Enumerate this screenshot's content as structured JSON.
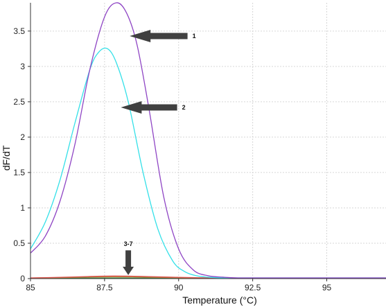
{
  "chart_data": {
    "type": "line",
    "title": "",
    "xlabel": "Temperature (°C)",
    "ylabel": "dF/dT",
    "xlim": [
      85,
      97
    ],
    "ylim": [
      0,
      3.9
    ],
    "xticks": [
      85,
      87.5,
      90,
      92.5,
      95
    ],
    "xtick_labels": [
      "85",
      "87.5",
      "90",
      "92.5",
      "95"
    ],
    "yticks": [
      0,
      0.5,
      1,
      1.5,
      2,
      2.5,
      3,
      3.5
    ],
    "ytick_labels": [
      "0",
      "0.5",
      "1",
      "1.5",
      "2",
      "2.5",
      "3",
      "3.5"
    ],
    "grid": true,
    "legend": "none",
    "series": [
      {
        "color": "#8e44c4",
        "x": [
          85,
          85.5,
          86,
          86.5,
          87,
          87.5,
          87.9,
          88.25,
          88.6,
          89,
          89.5,
          90,
          90.5,
          91,
          91.5,
          92,
          93,
          94,
          95,
          96,
          97
        ],
        "y": [
          0.36,
          0.6,
          1.1,
          1.9,
          2.95,
          3.7,
          3.9,
          3.75,
          3.3,
          2.4,
          1.15,
          0.42,
          0.12,
          0.04,
          0.02,
          0.01,
          0.01,
          0.01,
          0.01,
          0.01,
          0.01
        ]
      },
      {
        "color": "#33e0e8",
        "x": [
          85,
          85.5,
          86,
          86.5,
          87,
          87.3,
          87.6,
          87.9,
          88.3,
          88.8,
          89.3,
          89.8,
          90.2,
          90.6,
          91,
          91.5,
          92,
          93,
          94,
          95,
          96,
          97
        ],
        "y": [
          0.42,
          0.8,
          1.4,
          2.2,
          2.95,
          3.2,
          3.25,
          3.05,
          2.5,
          1.5,
          0.7,
          0.25,
          0.1,
          0.04,
          0.02,
          0.01,
          0.01,
          0.01,
          0.01,
          0.01,
          0.01,
          0.01
        ]
      },
      {
        "color": "#d9534f",
        "x": [
          85,
          86,
          87,
          87.8,
          88.5,
          89,
          90,
          91,
          92,
          94,
          97
        ],
        "y": [
          0.01,
          0.018,
          0.03,
          0.036,
          0.033,
          0.028,
          0.018,
          0.01,
          0.006,
          0.005,
          0.005
        ]
      },
      {
        "color": "#c47a3a",
        "x": [
          85,
          86,
          87,
          87.8,
          88.5,
          89,
          90,
          91,
          92,
          94,
          97
        ],
        "y": [
          0.008,
          0.014,
          0.022,
          0.026,
          0.024,
          0.02,
          0.013,
          0.008,
          0.005,
          0.004,
          0.004
        ]
      },
      {
        "color": "#3c8a3c",
        "x": [
          85,
          86,
          87,
          88,
          89,
          90,
          91,
          92,
          94,
          97
        ],
        "y": [
          0.004,
          0.006,
          0.008,
          0.009,
          0.008,
          0.006,
          0.005,
          0.004,
          0.004,
          0.004
        ]
      },
      {
        "color": "#4a6fd1",
        "x": [
          85,
          86,
          87,
          88,
          89,
          90,
          91,
          92,
          94,
          97
        ],
        "y": [
          0.003,
          0.005,
          0.006,
          0.007,
          0.006,
          0.005,
          0.004,
          0.003,
          0.003,
          0.003
        ]
      },
      {
        "color": "#b0b0b0",
        "x": [
          85,
          86,
          87,
          88,
          89,
          90,
          91,
          92,
          94,
          97
        ],
        "y": [
          0.002,
          0.003,
          0.004,
          0.005,
          0.004,
          0.003,
          0.003,
          0.002,
          0.002,
          0.002
        ]
      }
    ],
    "annotations": [
      {
        "label": "1",
        "direction": "left",
        "arrow_tip": [
          88.35,
          3.43
        ],
        "arrow_tail": [
          90.3,
          3.43
        ]
      },
      {
        "label": "2",
        "direction": "left",
        "arrow_tip": [
          88.05,
          2.42
        ],
        "arrow_tail": [
          89.95,
          2.42
        ]
      },
      {
        "label": "3-7",
        "direction": "down",
        "arrow_tip": [
          88.3,
          0.05
        ],
        "arrow_tail": [
          88.3,
          0.4
        ]
      }
    ]
  }
}
